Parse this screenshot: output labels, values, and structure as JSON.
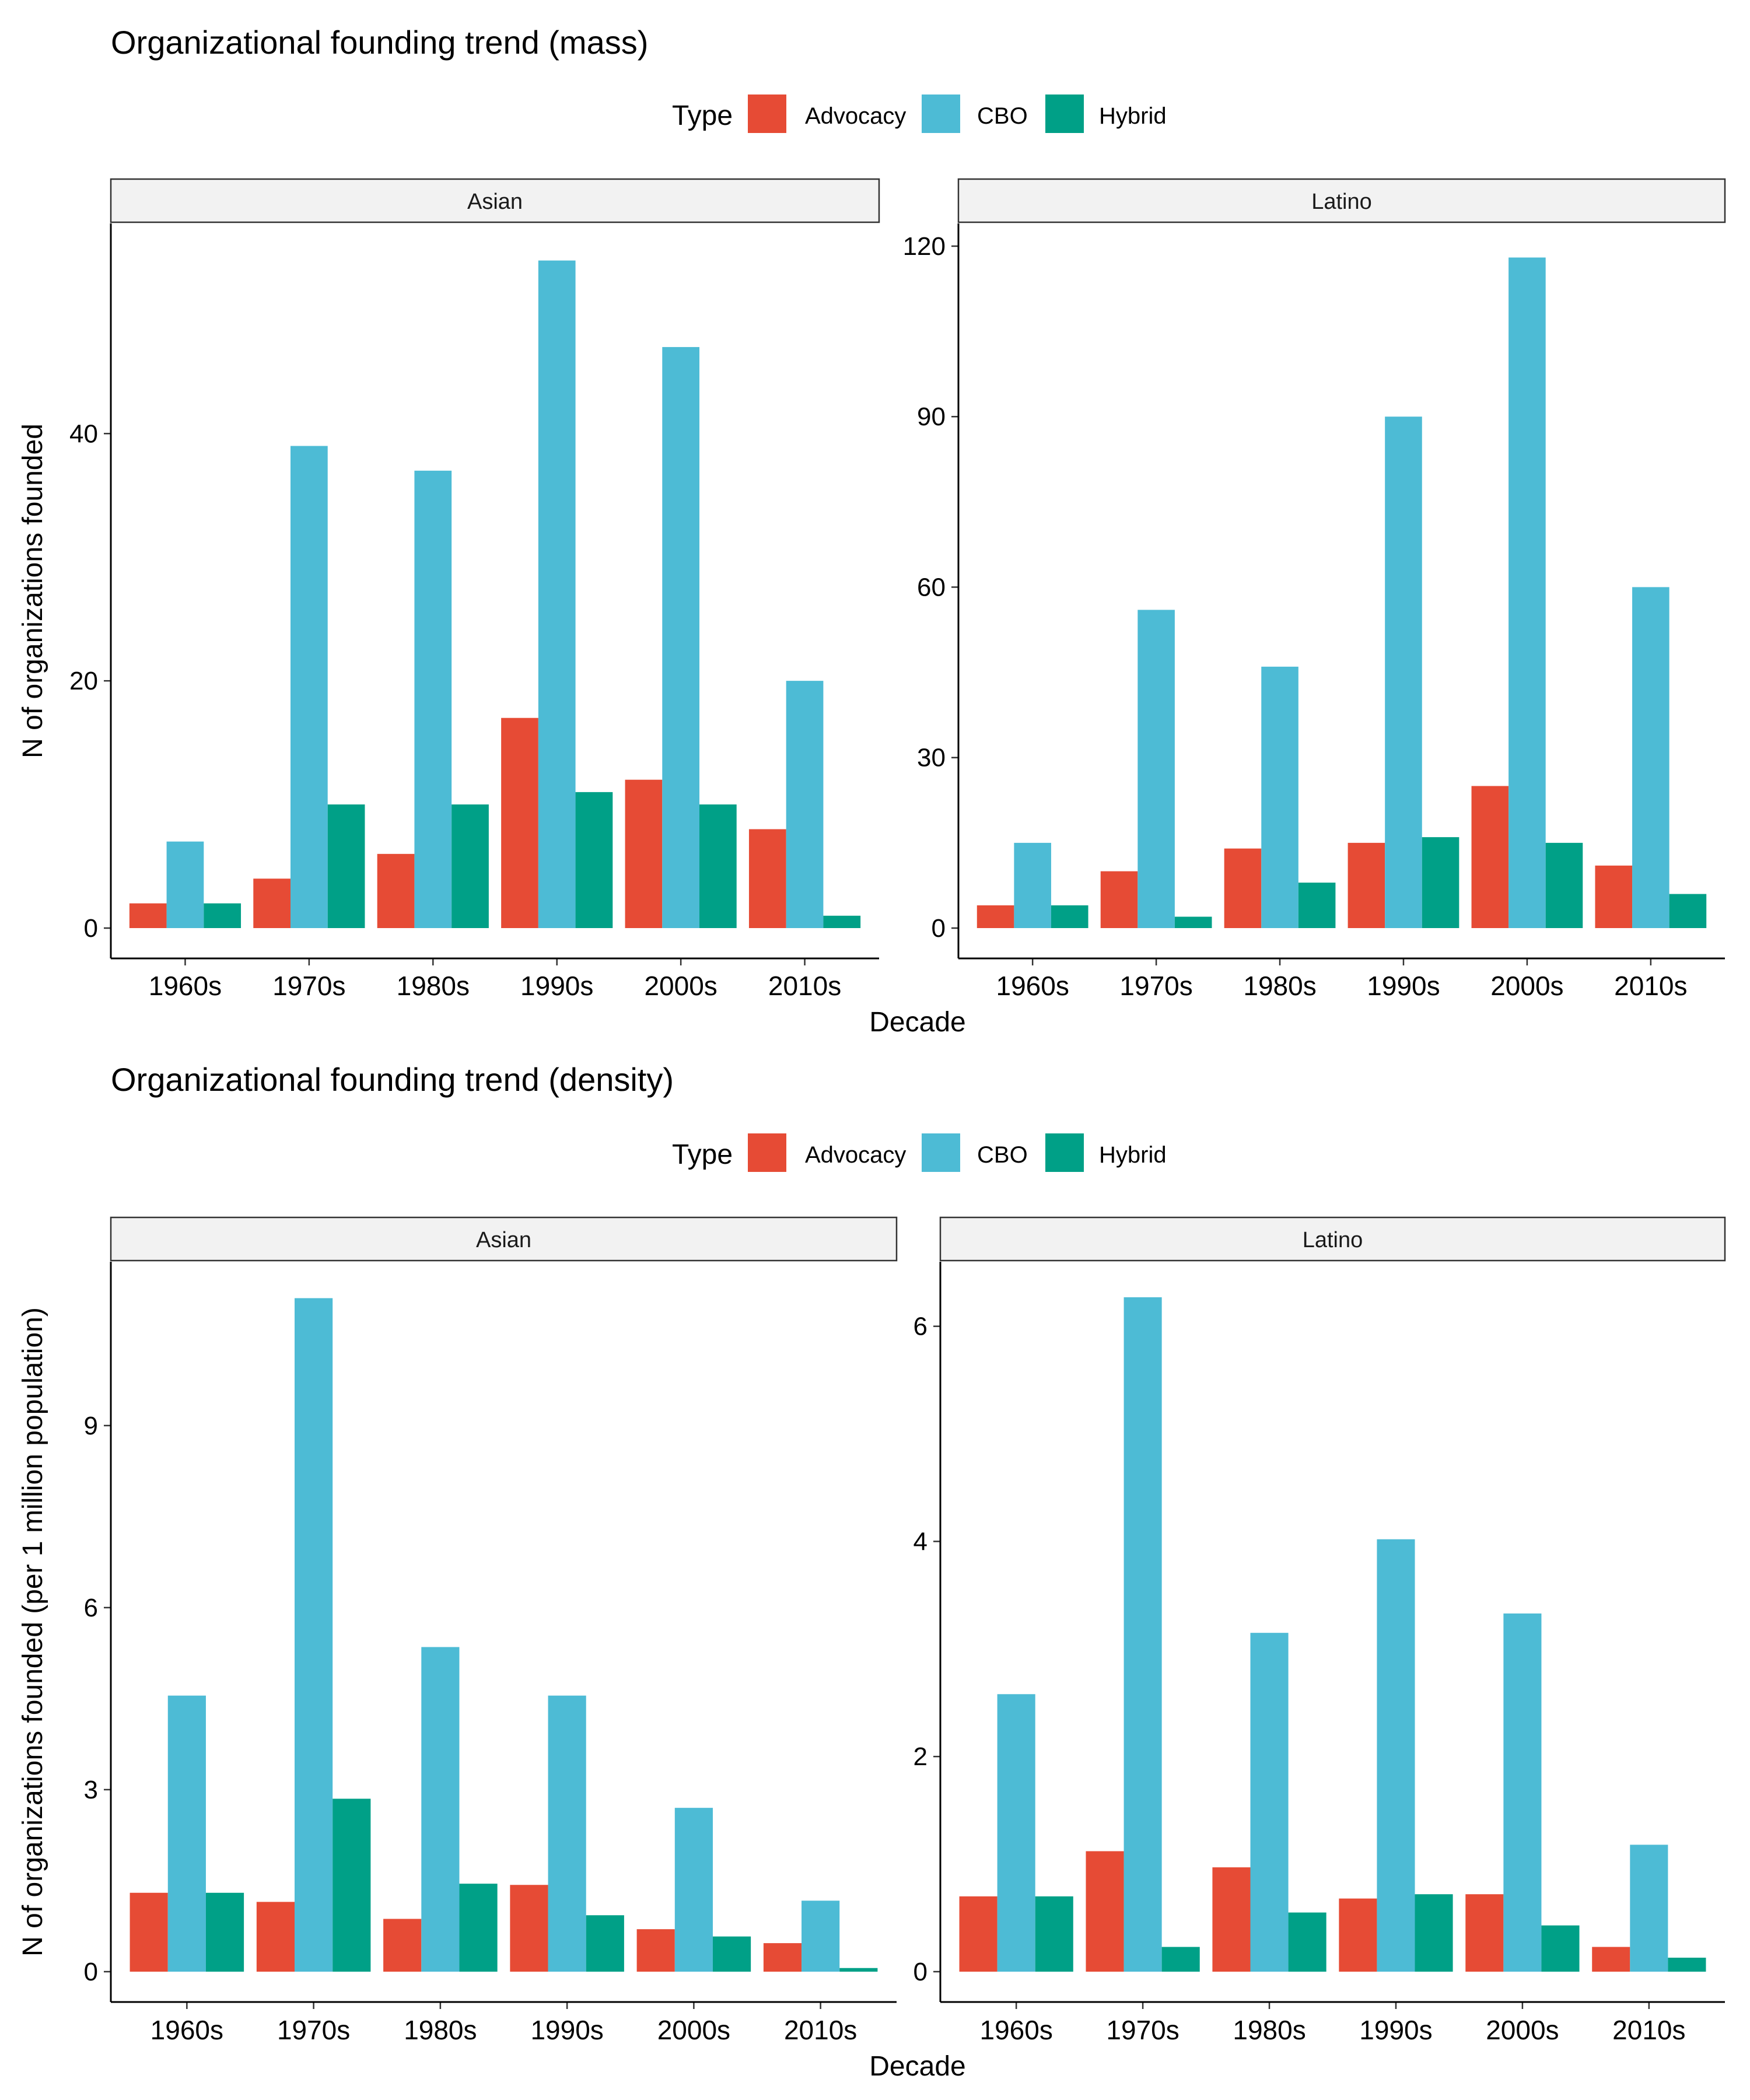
{
  "figure": {
    "x_label": "Decade",
    "legend_title": "Type",
    "legend_placement": "top"
  },
  "colors": {
    "Advocacy": "#E64B35",
    "CBO": "#4DBBD5",
    "Hybrid": "#00A087",
    "strip_fill": "#F2F2F2"
  },
  "chart_data": [
    {
      "type": "bar",
      "title": "Organizational founding trend (mass)",
      "ylabel": "N of organizations founded",
      "xlabel": "Decade",
      "legend": {
        "title": "Type",
        "entries": [
          "Advocacy",
          "CBO",
          "Hybrid"
        ],
        "placement": "top"
      },
      "categories": [
        "1960s",
        "1970s",
        "1980s",
        "1990s",
        "2000s",
        "2010s"
      ],
      "grid": false,
      "panels": [
        {
          "strip": "Asian",
          "ylim": [
            0,
            57
          ],
          "yticks": [
            0,
            20,
            40
          ],
          "series": [
            {
              "name": "Advocacy",
              "values": [
                2,
                4,
                6,
                17,
                12,
                8
              ]
            },
            {
              "name": "CBO",
              "values": [
                7,
                39,
                37,
                54,
                47,
                20
              ]
            },
            {
              "name": "Hybrid",
              "values": [
                2,
                10,
                10,
                11,
                10,
                1
              ]
            }
          ]
        },
        {
          "strip": "Latino",
          "ylim": [
            0,
            124
          ],
          "yticks": [
            0,
            30,
            60,
            90,
            120
          ],
          "series": [
            {
              "name": "Advocacy",
              "values": [
                4,
                10,
                14,
                15,
                25,
                11
              ]
            },
            {
              "name": "CBO",
              "values": [
                15,
                56,
                46,
                90,
                118,
                60
              ]
            },
            {
              "name": "Hybrid",
              "values": [
                4,
                2,
                8,
                16,
                15,
                6
              ]
            }
          ]
        }
      ]
    },
    {
      "type": "bar",
      "title": "Organizational founding trend (density)",
      "ylabel": "N of organizations founded (per 1 million population)",
      "xlabel": "Decade",
      "legend": {
        "title": "Type",
        "entries": [
          "Advocacy",
          "CBO",
          "Hybrid"
        ],
        "placement": "top"
      },
      "categories": [
        "1960s",
        "1970s",
        "1980s",
        "1990s",
        "2000s",
        "2010s"
      ],
      "grid": false,
      "panels": [
        {
          "strip": "Asian",
          "ylim": [
            0,
            11.7
          ],
          "yticks": [
            0,
            3,
            6,
            9
          ],
          "series": [
            {
              "name": "Advocacy",
              "values": [
                1.3,
                1.15,
                0.87,
                1.43,
                0.7,
                0.47
              ]
            },
            {
              "name": "CBO",
              "values": [
                4.55,
                11.1,
                5.35,
                4.55,
                2.7,
                1.17
              ]
            },
            {
              "name": "Hybrid",
              "values": [
                1.3,
                2.85,
                1.45,
                0.93,
                0.58,
                0.06
              ]
            }
          ]
        },
        {
          "strip": "Latino",
          "ylim": [
            0,
            6.6
          ],
          "yticks": [
            0,
            2,
            4,
            6
          ],
          "series": [
            {
              "name": "Advocacy",
              "values": [
                0.7,
                1.12,
                0.97,
                0.68,
                0.72,
                0.23
              ]
            },
            {
              "name": "CBO",
              "values": [
                2.58,
                6.27,
                3.15,
                4.02,
                3.33,
                1.18
              ]
            },
            {
              "name": "Hybrid",
              "values": [
                0.7,
                0.23,
                0.55,
                0.72,
                0.43,
                0.13
              ]
            }
          ]
        }
      ]
    }
  ]
}
